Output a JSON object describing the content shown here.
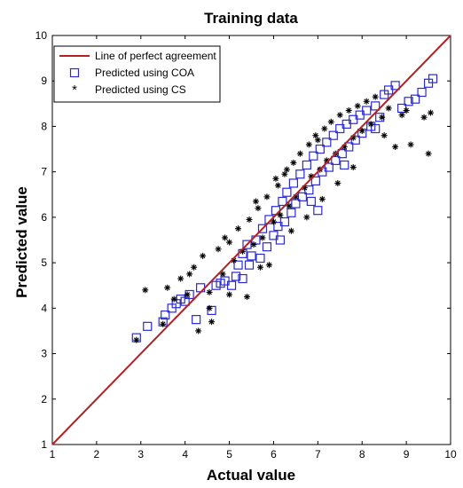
{
  "chart_data": {
    "type": "scatter",
    "title": "Training data",
    "xlabel": "Actual value",
    "ylabel": "Predicted value",
    "xlim": [
      1,
      10
    ],
    "ylim": [
      1,
      10
    ],
    "xticks": [
      "1",
      "2",
      "3",
      "4",
      "5",
      "6",
      "7",
      "8",
      "9",
      "10"
    ],
    "yticks": [
      "1",
      "2",
      "3",
      "4",
      "5",
      "6",
      "7",
      "8",
      "9",
      "10"
    ],
    "grid": false,
    "legend_position": "top-left",
    "line": {
      "name": "Line of perfect agreement",
      "color": "#b22222",
      "points": [
        [
          1,
          1
        ],
        [
          10,
          10
        ]
      ]
    },
    "series": [
      {
        "name": "Predicted using COA",
        "marker": "square",
        "color": "#2a2ad8",
        "points": [
          [
            2.9,
            3.35
          ],
          [
            3.15,
            3.6
          ],
          [
            3.5,
            3.7
          ],
          [
            3.55,
            3.85
          ],
          [
            3.7,
            4.0
          ],
          [
            3.8,
            4.1
          ],
          [
            3.9,
            4.2
          ],
          [
            4.0,
            4.15
          ],
          [
            4.1,
            4.3
          ],
          [
            4.25,
            3.75
          ],
          [
            4.35,
            4.45
          ],
          [
            4.6,
            3.95
          ],
          [
            4.7,
            4.5
          ],
          [
            4.9,
            4.6
          ],
          [
            5.05,
            4.5
          ],
          [
            5.15,
            4.7
          ],
          [
            5.2,
            4.95
          ],
          [
            5.3,
            5.2
          ],
          [
            5.3,
            4.65
          ],
          [
            5.4,
            5.4
          ],
          [
            5.5,
            5.15
          ],
          [
            5.6,
            5.5
          ],
          [
            5.7,
            5.1
          ],
          [
            5.75,
            5.75
          ],
          [
            5.85,
            5.35
          ],
          [
            5.9,
            5.95
          ],
          [
            6.0,
            5.6
          ],
          [
            6.05,
            6.15
          ],
          [
            6.1,
            5.8
          ],
          [
            6.2,
            6.35
          ],
          [
            6.25,
            5.9
          ],
          [
            6.3,
            6.55
          ],
          [
            6.4,
            6.1
          ],
          [
            6.45,
            6.75
          ],
          [
            6.5,
            6.3
          ],
          [
            6.6,
            6.95
          ],
          [
            6.65,
            6.45
          ],
          [
            6.75,
            7.15
          ],
          [
            6.8,
            6.6
          ],
          [
            6.9,
            7.35
          ],
          [
            6.95,
            6.8
          ],
          [
            7.05,
            7.5
          ],
          [
            7.1,
            7.0
          ],
          [
            7.2,
            7.65
          ],
          [
            7.25,
            7.1
          ],
          [
            7.35,
            7.8
          ],
          [
            7.4,
            7.25
          ],
          [
            7.5,
            7.95
          ],
          [
            7.55,
            7.4
          ],
          [
            7.65,
            8.05
          ],
          [
            7.7,
            7.55
          ],
          [
            7.8,
            8.15
          ],
          [
            7.85,
            7.7
          ],
          [
            7.95,
            8.25
          ],
          [
            8.0,
            7.85
          ],
          [
            8.1,
            8.35
          ],
          [
            8.2,
            8.0
          ],
          [
            8.3,
            8.45
          ],
          [
            8.4,
            8.2
          ],
          [
            8.5,
            8.7
          ],
          [
            8.6,
            8.8
          ],
          [
            8.75,
            8.9
          ],
          [
            8.9,
            8.4
          ],
          [
            9.05,
            8.55
          ],
          [
            9.2,
            8.6
          ],
          [
            9.35,
            8.75
          ],
          [
            9.5,
            8.95
          ],
          [
            9.6,
            9.05
          ],
          [
            8.3,
            7.95
          ],
          [
            7.6,
            7.15
          ],
          [
            6.85,
            6.35
          ],
          [
            6.15,
            5.5
          ],
          [
            5.45,
            4.95
          ],
          [
            4.8,
            4.55
          ],
          [
            7.0,
            6.15
          ]
        ]
      },
      {
        "name": "Predicted using CS",
        "marker": "asterisk",
        "color": "#000000",
        "points": [
          [
            2.9,
            3.3
          ],
          [
            3.1,
            4.4
          ],
          [
            3.5,
            3.65
          ],
          [
            3.6,
            4.45
          ],
          [
            3.75,
            4.2
          ],
          [
            3.9,
            4.65
          ],
          [
            4.05,
            4.3
          ],
          [
            4.2,
            4.9
          ],
          [
            4.3,
            3.5
          ],
          [
            4.4,
            5.15
          ],
          [
            4.55,
            4.0
          ],
          [
            4.6,
            3.7
          ],
          [
            4.75,
            5.3
          ],
          [
            4.85,
            4.75
          ],
          [
            5.0,
            5.45
          ],
          [
            5.1,
            5.05
          ],
          [
            5.2,
            5.75
          ],
          [
            5.3,
            5.25
          ],
          [
            5.4,
            4.25
          ],
          [
            5.45,
            5.95
          ],
          [
            5.55,
            5.4
          ],
          [
            5.65,
            6.2
          ],
          [
            5.75,
            5.55
          ],
          [
            5.85,
            6.45
          ],
          [
            5.9,
            4.95
          ],
          [
            6.0,
            5.9
          ],
          [
            6.1,
            6.7
          ],
          [
            6.15,
            6.05
          ],
          [
            6.25,
            6.95
          ],
          [
            6.35,
            6.25
          ],
          [
            6.45,
            7.2
          ],
          [
            6.5,
            6.45
          ],
          [
            6.6,
            7.4
          ],
          [
            6.7,
            6.65
          ],
          [
            6.8,
            7.6
          ],
          [
            6.85,
            6.9
          ],
          [
            6.95,
            7.8
          ],
          [
            7.05,
            7.05
          ],
          [
            7.15,
            7.95
          ],
          [
            7.2,
            7.25
          ],
          [
            7.3,
            8.1
          ],
          [
            7.4,
            7.4
          ],
          [
            7.5,
            8.25
          ],
          [
            7.6,
            7.55
          ],
          [
            7.7,
            8.35
          ],
          [
            7.8,
            7.75
          ],
          [
            7.9,
            8.45
          ],
          [
            8.0,
            7.9
          ],
          [
            8.1,
            8.55
          ],
          [
            8.2,
            8.05
          ],
          [
            8.3,
            8.65
          ],
          [
            8.45,
            8.2
          ],
          [
            8.6,
            8.4
          ],
          [
            8.75,
            7.55
          ],
          [
            8.9,
            8.25
          ],
          [
            9.0,
            8.35
          ],
          [
            9.1,
            7.6
          ],
          [
            9.4,
            8.2
          ],
          [
            9.5,
            7.4
          ],
          [
            9.55,
            8.3
          ],
          [
            4.1,
            4.75
          ],
          [
            4.9,
            5.55
          ],
          [
            5.6,
            6.35
          ],
          [
            6.3,
            7.05
          ],
          [
            7.0,
            7.7
          ],
          [
            5.0,
            4.3
          ],
          [
            5.7,
            4.9
          ],
          [
            6.4,
            5.7
          ],
          [
            7.1,
            6.4
          ],
          [
            7.8,
            7.1
          ],
          [
            8.5,
            7.8
          ],
          [
            4.55,
            4.35
          ],
          [
            6.05,
            6.85
          ],
          [
            6.75,
            6.0
          ],
          [
            7.45,
            6.75
          ]
        ]
      }
    ]
  }
}
